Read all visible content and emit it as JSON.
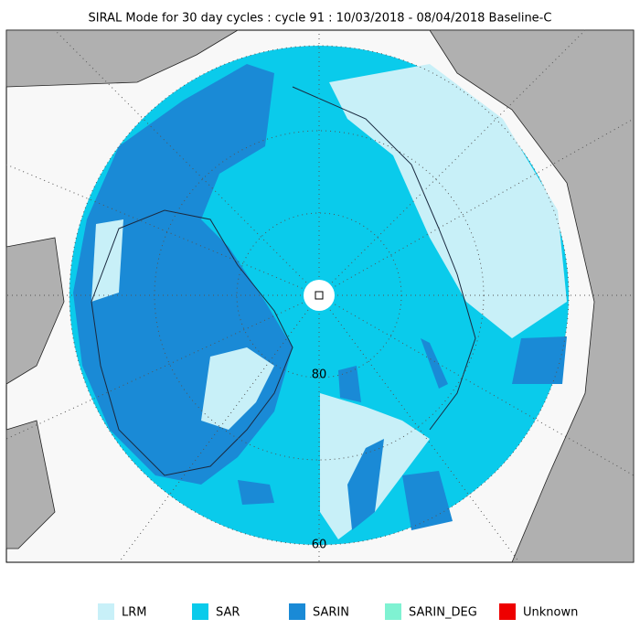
{
  "title": "SIRAL Mode for 30 day cycles : cycle 91 : 10/03/2018 - 08/04/2018 Baseline-C",
  "latitude_labels": [
    "80",
    "60"
  ],
  "legend": [
    {
      "label": "LRM",
      "color": "#c8f0f8"
    },
    {
      "label": "SAR",
      "color": "#0acbeb"
    },
    {
      "label": "SARIN",
      "color": "#1a8ad6"
    },
    {
      "label": "SARIN_DEG",
      "color": "#7ff2d2"
    },
    {
      "label": "Unknown",
      "color": "#ee0000"
    }
  ]
}
